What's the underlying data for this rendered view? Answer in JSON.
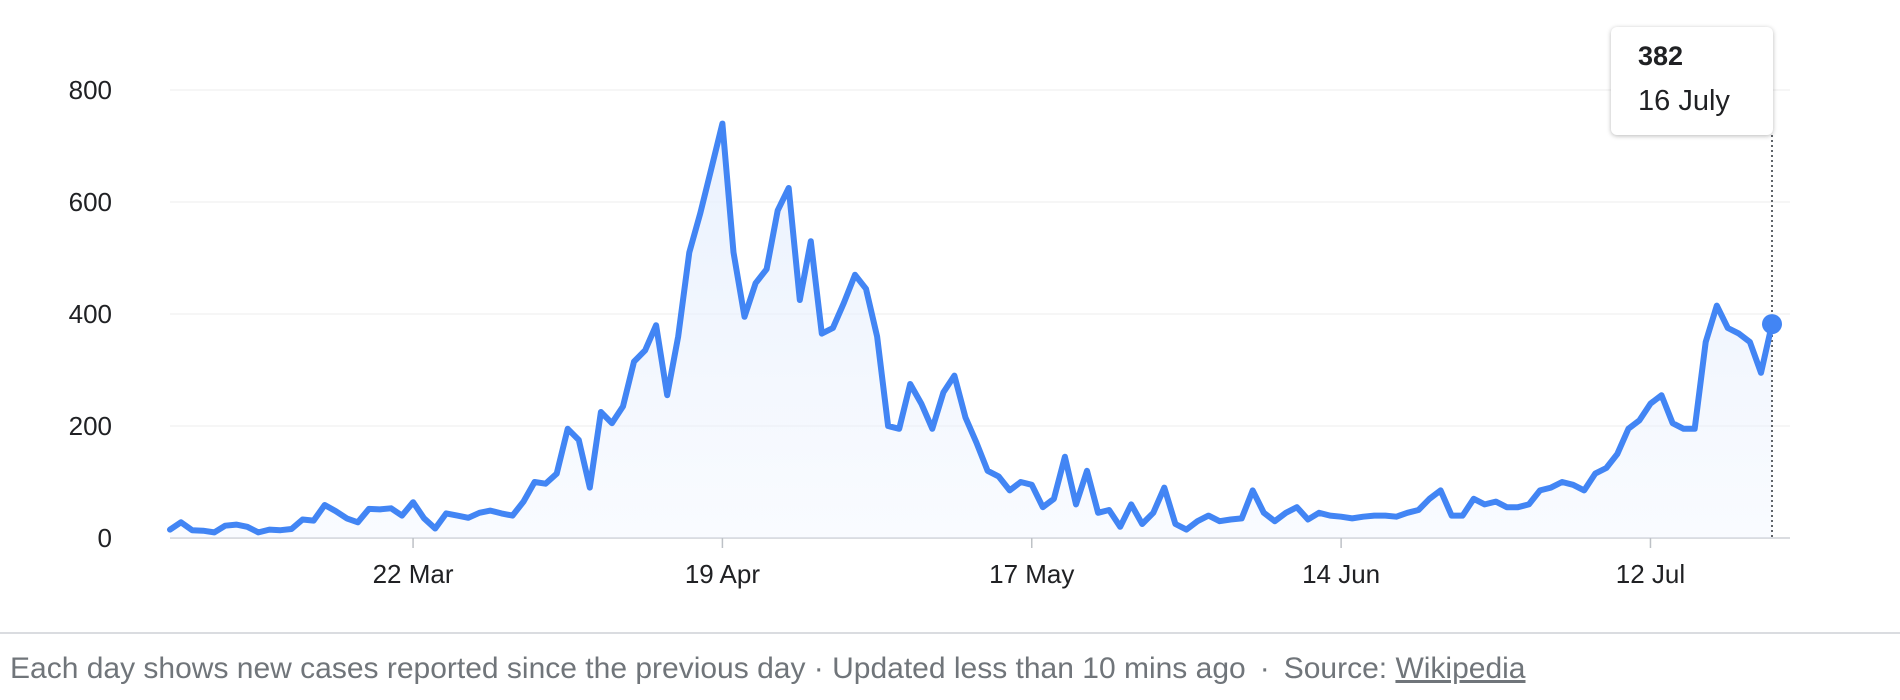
{
  "chart_data": {
    "type": "area",
    "title": "",
    "xlabel": "",
    "ylabel": "",
    "ylim": [
      0,
      800
    ],
    "yticks": [
      "0",
      "200",
      "400",
      "600",
      "800"
    ],
    "xtick_labels": [
      "22 Mar",
      "19 Apr",
      "17 May",
      "14 Jun",
      "12 Jul"
    ],
    "grid": true,
    "colors": {
      "line": "#4285f4",
      "fill": "#e8f0fe"
    },
    "series": [
      {
        "x_start": "29 Feb",
        "x_end": "16 Jul",
        "values": [
          15,
          28,
          14,
          13,
          10,
          22,
          24,
          20,
          10,
          15,
          14,
          16,
          33,
          31,
          59,
          48,
          35,
          28,
          52,
          51,
          53,
          40,
          64,
          35,
          17,
          44,
          40,
          36,
          45,
          49,
          44,
          40,
          65,
          100,
          97,
          115,
          195,
          175,
          90,
          225,
          205,
          235,
          315,
          335,
          380,
          255,
          360,
          510,
          580,
          660,
          740,
          510,
          395,
          455,
          480,
          585,
          625,
          425,
          530,
          365,
          375,
          420,
          470,
          445,
          360,
          200,
          195,
          275,
          240,
          195,
          260,
          290,
          215,
          170,
          120,
          110,
          85,
          100,
          95,
          55,
          70,
          145,
          60,
          120,
          45,
          50,
          20,
          60,
          25,
          45,
          90,
          25,
          15,
          30,
          40,
          30,
          33,
          35,
          85,
          45,
          30,
          45,
          55,
          33,
          45,
          40,
          38,
          35,
          38,
          40,
          40,
          38,
          45,
          50,
          70,
          85,
          40,
          40,
          70,
          60,
          65,
          55,
          55,
          60,
          85,
          90,
          100,
          95,
          85,
          115,
          125,
          150,
          195,
          210,
          240,
          255,
          205,
          195,
          195,
          350,
          415,
          375,
          365,
          350,
          295,
          382
        ]
      }
    ],
    "tooltip": {
      "value": "382",
      "date": "16 July"
    }
  },
  "footer": {
    "note": "Each day shows new cases reported since the previous day · Updated less than 10 mins ago",
    "separator": "·",
    "source_label": "Source:",
    "source_link": "Wikipedia"
  }
}
